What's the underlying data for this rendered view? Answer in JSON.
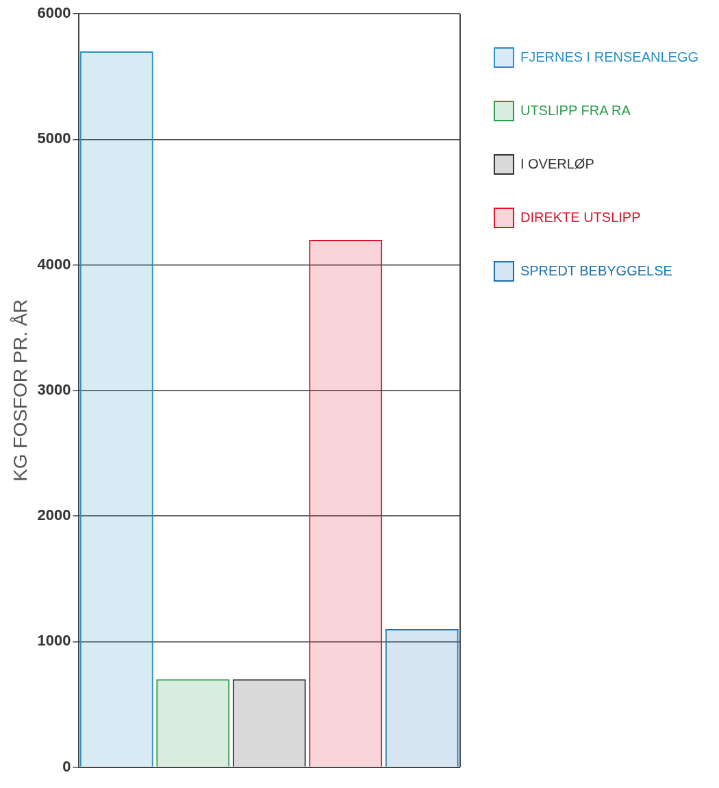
{
  "chart_data": {
    "type": "bar",
    "ylabel": "KG FOSFOR PR. ÅR",
    "categories": [
      null,
      null,
      null,
      null,
      null
    ],
    "series": [
      {
        "name": "FJERNES I RENSEANLEGG",
        "color": "#2a8fc8",
        "values": [
          5700,
          null,
          null,
          null,
          null
        ]
      },
      {
        "name": "UTSLIPP FRA RA",
        "color": "#2a9a4a",
        "values": [
          null,
          700,
          null,
          null,
          null
        ]
      },
      {
        "name": "I OVERLØP",
        "color": "#333333",
        "values": [
          null,
          null,
          700,
          null,
          null
        ]
      },
      {
        "name": "DIREKTE UTSLIPP",
        "color": "#e0102a",
        "values": [
          null,
          null,
          null,
          4200,
          null
        ]
      },
      {
        "name": "SPREDT BEBYGGELSE",
        "color": "#1a70b0",
        "values": [
          null,
          null,
          null,
          null,
          1100
        ]
      }
    ],
    "ylim": [
      0,
      6000
    ],
    "yticks": [
      0,
      1000,
      2000,
      3000,
      4000,
      5000,
      6000
    ],
    "grid": "y",
    "legend": "right"
  }
}
